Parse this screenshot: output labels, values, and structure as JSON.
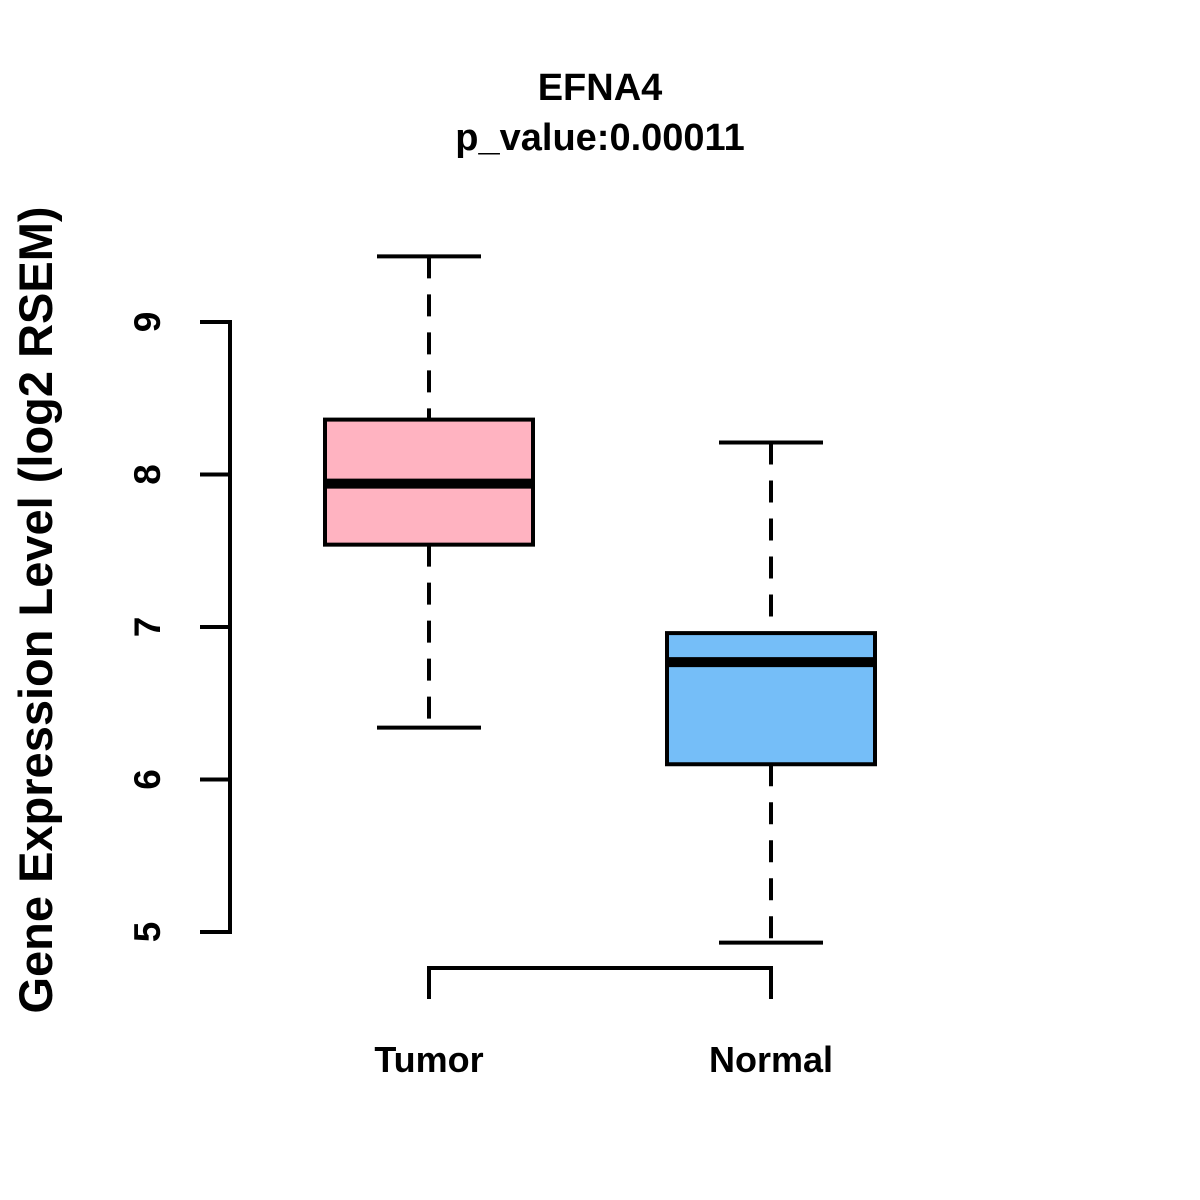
{
  "figure": {
    "background": "#FFFFFF",
    "line_color": "#000000"
  },
  "chart_data": {
    "type": "boxplot",
    "title": "EFNA4",
    "subtitle": "p_value:0.00011",
    "ylabel": "Gene Expression Level (log2 RSEM)",
    "xlabel": "",
    "y_ticks": [
      5,
      6,
      7,
      8,
      9
    ],
    "ylim": [
      4.6,
      9.6
    ],
    "grid": false,
    "legend": false,
    "categories": [
      "Tumor",
      "Normal"
    ],
    "series": [
      {
        "name": "Tumor",
        "fill_color": "#FFB3C1",
        "whisker_low": 6.34,
        "q1": 7.54,
        "median": 7.94,
        "q3": 8.36,
        "whisker_high": 9.43
      },
      {
        "name": "Normal",
        "fill_color": "#75BEF8",
        "whisker_low": 4.93,
        "q1": 6.1,
        "median": 6.77,
        "q3": 6.96,
        "whisker_high": 8.21
      }
    ],
    "annotations": {
      "comparison_bracket": {
        "from": "Tumor",
        "to": "Normal",
        "side": "below"
      }
    }
  }
}
